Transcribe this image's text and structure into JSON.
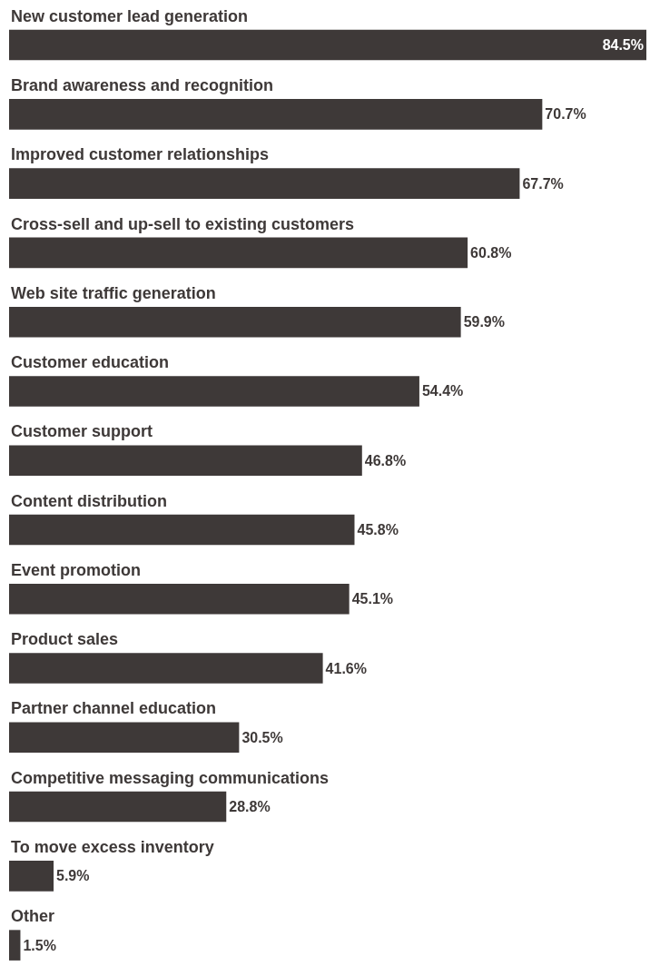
{
  "chart_data": {
    "type": "bar",
    "orientation": "horizontal",
    "color": "#3e3938",
    "categories": [
      "New customer lead generation",
      "Brand awareness and recognition",
      "Improved customer relationships",
      "Cross-sell and up-sell to existing customers",
      "Web site traffic generation",
      "Customer education",
      "Customer support",
      "Content distribution",
      "Event promotion",
      "Product sales",
      "Partner channel education",
      "Competitive messaging communications",
      "To move excess inventory",
      "Other"
    ],
    "values": [
      84.5,
      70.7,
      67.7,
      60.8,
      59.9,
      54.4,
      46.8,
      45.8,
      45.1,
      41.6,
      30.5,
      28.8,
      5.9,
      1.5
    ],
    "value_labels": [
      "84.5%",
      "70.7%",
      "67.7%",
      "60.8%",
      "59.9%",
      "54.4%",
      "46.8%",
      "45.8%",
      "45.1%",
      "41.6%",
      "30.5%",
      "28.8%",
      "5.9%",
      "1.5%"
    ],
    "legend": false
  }
}
